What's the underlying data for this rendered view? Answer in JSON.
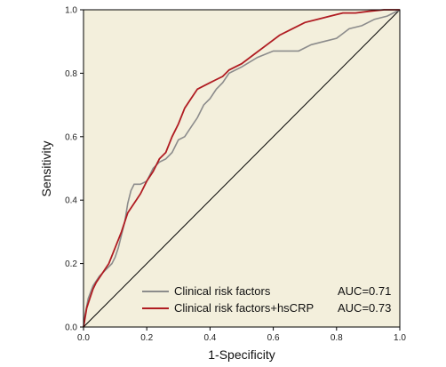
{
  "chart_data": {
    "type": "line",
    "title": "",
    "xlabel": "1-Specificity",
    "ylabel": "Sensitivity",
    "xlim": [
      0,
      1
    ],
    "ylim": [
      0,
      1
    ],
    "x_ticks": [
      "0.0",
      "0.2",
      "0.4",
      "0.6",
      "0.8",
      "1.0"
    ],
    "y_ticks": [
      "0.0",
      "0.2",
      "0.4",
      "0.6",
      "0.8",
      "1.0"
    ],
    "grid": false,
    "legend_position": "bottom-right",
    "plot_background": "#f3efdc",
    "reference_line": {
      "x": [
        0,
        1
      ],
      "y": [
        0,
        1
      ],
      "color": "#000000"
    },
    "series": [
      {
        "name": "Clinical risk factors",
        "auc_label": "AUC=0.71",
        "color": "#8c8c8c",
        "points": [
          [
            0,
            0
          ],
          [
            0.005,
            0.04
          ],
          [
            0.015,
            0.09
          ],
          [
            0.03,
            0.13
          ],
          [
            0.05,
            0.16
          ],
          [
            0.07,
            0.18
          ],
          [
            0.08,
            0.19
          ],
          [
            0.09,
            0.2
          ],
          [
            0.1,
            0.22
          ],
          [
            0.11,
            0.25
          ],
          [
            0.12,
            0.29
          ],
          [
            0.13,
            0.33
          ],
          [
            0.14,
            0.39
          ],
          [
            0.15,
            0.43
          ],
          [
            0.16,
            0.45
          ],
          [
            0.18,
            0.45
          ],
          [
            0.2,
            0.46
          ],
          [
            0.22,
            0.5
          ],
          [
            0.24,
            0.52
          ],
          [
            0.26,
            0.53
          ],
          [
            0.28,
            0.55
          ],
          [
            0.3,
            0.59
          ],
          [
            0.32,
            0.6
          ],
          [
            0.34,
            0.63
          ],
          [
            0.36,
            0.66
          ],
          [
            0.38,
            0.7
          ],
          [
            0.4,
            0.72
          ],
          [
            0.42,
            0.75
          ],
          [
            0.44,
            0.77
          ],
          [
            0.46,
            0.8
          ],
          [
            0.5,
            0.82
          ],
          [
            0.55,
            0.85
          ],
          [
            0.6,
            0.87
          ],
          [
            0.64,
            0.87
          ],
          [
            0.68,
            0.87
          ],
          [
            0.72,
            0.89
          ],
          [
            0.76,
            0.9
          ],
          [
            0.8,
            0.91
          ],
          [
            0.84,
            0.94
          ],
          [
            0.88,
            0.95
          ],
          [
            0.92,
            0.97
          ],
          [
            0.96,
            0.98
          ],
          [
            1,
            1
          ]
        ]
      },
      {
        "name": "Clinical risk factors+hsCRP",
        "auc_label": "AUC=0.73",
        "color": "#b01c22",
        "points": [
          [
            0,
            0
          ],
          [
            0.005,
            0.03
          ],
          [
            0.01,
            0.06
          ],
          [
            0.02,
            0.09
          ],
          [
            0.03,
            0.12
          ],
          [
            0.04,
            0.14
          ],
          [
            0.06,
            0.17
          ],
          [
            0.08,
            0.2
          ],
          [
            0.1,
            0.25
          ],
          [
            0.12,
            0.3
          ],
          [
            0.14,
            0.36
          ],
          [
            0.16,
            0.39
          ],
          [
            0.18,
            0.42
          ],
          [
            0.2,
            0.46
          ],
          [
            0.22,
            0.49
          ],
          [
            0.24,
            0.53
          ],
          [
            0.26,
            0.55
          ],
          [
            0.28,
            0.6
          ],
          [
            0.3,
            0.64
          ],
          [
            0.32,
            0.69
          ],
          [
            0.34,
            0.72
          ],
          [
            0.36,
            0.75
          ],
          [
            0.38,
            0.76
          ],
          [
            0.4,
            0.77
          ],
          [
            0.42,
            0.78
          ],
          [
            0.44,
            0.79
          ],
          [
            0.46,
            0.81
          ],
          [
            0.5,
            0.83
          ],
          [
            0.54,
            0.86
          ],
          [
            0.58,
            0.89
          ],
          [
            0.62,
            0.92
          ],
          [
            0.66,
            0.94
          ],
          [
            0.7,
            0.96
          ],
          [
            0.74,
            0.97
          ],
          [
            0.78,
            0.98
          ],
          [
            0.82,
            0.99
          ],
          [
            0.86,
            0.99
          ],
          [
            0.9,
            0.995
          ],
          [
            0.95,
            1
          ],
          [
            1,
            1
          ]
        ]
      }
    ]
  }
}
